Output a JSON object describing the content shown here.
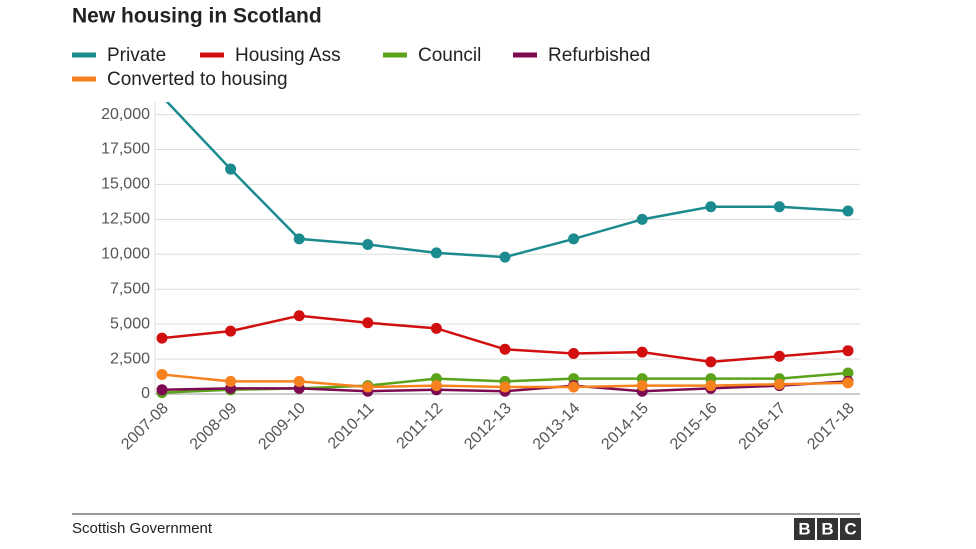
{
  "chart_data": {
    "type": "line",
    "title": "New housing in Scotland",
    "categories": [
      "2007-08",
      "2008-09",
      "2009-10",
      "2010-11",
      "2011-12",
      "2012-13",
      "2013-14",
      "2014-15",
      "2015-16",
      "2016-17",
      "2017-18"
    ],
    "series": [
      {
        "name": "Private",
        "color": "#1b8b8f",
        "values": [
          21300,
          16100,
          11100,
          10700,
          10100,
          9800,
          11100,
          12500,
          13400,
          13400,
          13100
        ]
      },
      {
        "name": "Housing Ass",
        "color": "#d10f0f",
        "values": [
          4000,
          4500,
          5600,
          5100,
          4700,
          3200,
          2900,
          3000,
          2300,
          2700,
          3100
        ]
      },
      {
        "name": "Council",
        "color": "#5ba31b",
        "values": [
          100,
          300,
          400,
          600,
          1100,
          900,
          1100,
          1100,
          1100,
          1100,
          1500
        ]
      },
      {
        "name": "Refurbished",
        "color": "#7c0a52",
        "values": [
          300,
          400,
          400,
          200,
          300,
          200,
          600,
          200,
          400,
          600,
          900
        ]
      },
      {
        "name": "Converted to housing",
        "color": "#f5821f",
        "values": [
          1400,
          900,
          900,
          500,
          600,
          500,
          500,
          600,
          600,
          700,
          800
        ]
      }
    ],
    "ylim": [
      0,
      20900
    ],
    "yticks": [
      0,
      {
        "value": 2500,
        "label": "2,500"
      },
      {
        "value": 5000,
        "label": "5,000"
      },
      {
        "value": 7500,
        "label": "7,500"
      },
      {
        "value": 10000,
        "label": "10,000"
      },
      {
        "value": 12500,
        "label": "12,500"
      },
      {
        "value": 15000,
        "label": "15,000"
      },
      {
        "value": 17500,
        "label": "17,500"
      },
      {
        "value": 20000,
        "label": "20,000"
      }
    ],
    "grid": true,
    "source": "Scottish Government",
    "logo": [
      "B",
      "B",
      "C"
    ]
  }
}
